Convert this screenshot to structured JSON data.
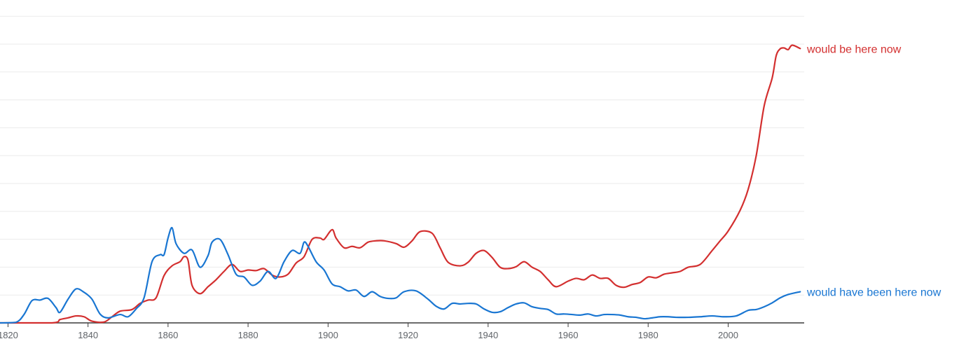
{
  "chart_data": {
    "type": "line",
    "title": "",
    "xlabel": "",
    "ylabel": "",
    "xlim": [
      1818,
      2019
    ],
    "ylim": [
      0,
      11
    ],
    "grid": true,
    "legend": "inline-right",
    "x_ticks": [
      1820,
      1840,
      1860,
      1880,
      1900,
      1920,
      1940,
      1960,
      1980,
      2000
    ],
    "series": [
      {
        "name": "would be here now",
        "color": "#d32f2f",
        "points": [
          [
            1818,
            0
          ],
          [
            1831,
            0
          ],
          [
            1833,
            0.12
          ],
          [
            1835,
            0.18
          ],
          [
            1837,
            0.25
          ],
          [
            1839,
            0.22
          ],
          [
            1841,
            0.06
          ],
          [
            1844,
            0.03
          ],
          [
            1846,
            0.22
          ],
          [
            1848,
            0.42
          ],
          [
            1851,
            0.48
          ],
          [
            1853,
            0.7
          ],
          [
            1855,
            0.82
          ],
          [
            1857,
            0.9
          ],
          [
            1859,
            1.7
          ],
          [
            1861,
            2.05
          ],
          [
            1863,
            2.2
          ],
          [
            1864,
            2.38
          ],
          [
            1865,
            2.25
          ],
          [
            1866,
            1.35
          ],
          [
            1868,
            1.05
          ],
          [
            1870,
            1.3
          ],
          [
            1872,
            1.55
          ],
          [
            1874,
            1.85
          ],
          [
            1876,
            2.1
          ],
          [
            1878,
            1.85
          ],
          [
            1880,
            1.9
          ],
          [
            1882,
            1.88
          ],
          [
            1884,
            1.95
          ],
          [
            1886,
            1.72
          ],
          [
            1888,
            1.65
          ],
          [
            1890,
            1.75
          ],
          [
            1892,
            2.15
          ],
          [
            1894,
            2.38
          ],
          [
            1896,
            3.0
          ],
          [
            1898,
            3.05
          ],
          [
            1899,
            3.0
          ],
          [
            1901,
            3.35
          ],
          [
            1902,
            3.05
          ],
          [
            1904,
            2.7
          ],
          [
            1906,
            2.75
          ],
          [
            1908,
            2.7
          ],
          [
            1910,
            2.9
          ],
          [
            1912,
            2.95
          ],
          [
            1914,
            2.95
          ],
          [
            1917,
            2.85
          ],
          [
            1919,
            2.72
          ],
          [
            1921,
            2.95
          ],
          [
            1923,
            3.28
          ],
          [
            1926,
            3.22
          ],
          [
            1928,
            2.7
          ],
          [
            1930,
            2.18
          ],
          [
            1933,
            2.05
          ],
          [
            1935,
            2.18
          ],
          [
            1937,
            2.5
          ],
          [
            1939,
            2.6
          ],
          [
            1941,
            2.35
          ],
          [
            1943,
            2.0
          ],
          [
            1945,
            1.95
          ],
          [
            1947,
            2.02
          ],
          [
            1949,
            2.2
          ],
          [
            1951,
            2.0
          ],
          [
            1953,
            1.85
          ],
          [
            1955,
            1.55
          ],
          [
            1957,
            1.3
          ],
          [
            1960,
            1.5
          ],
          [
            1962,
            1.6
          ],
          [
            1964,
            1.55
          ],
          [
            1966,
            1.72
          ],
          [
            1968,
            1.6
          ],
          [
            1970,
            1.6
          ],
          [
            1972,
            1.35
          ],
          [
            1974,
            1.28
          ],
          [
            1976,
            1.38
          ],
          [
            1978,
            1.45
          ],
          [
            1980,
            1.65
          ],
          [
            1982,
            1.62
          ],
          [
            1984,
            1.75
          ],
          [
            1986,
            1.8
          ],
          [
            1988,
            1.85
          ],
          [
            1990,
            2.0
          ],
          [
            1993,
            2.1
          ],
          [
            1996,
            2.6
          ],
          [
            1998,
            2.95
          ],
          [
            2000,
            3.3
          ],
          [
            2003,
            4.05
          ],
          [
            2005,
            4.8
          ],
          [
            2007,
            6.0
          ],
          [
            2009,
            7.8
          ],
          [
            2011,
            8.8
          ],
          [
            2012,
            9.6
          ],
          [
            2013,
            9.85
          ],
          [
            2014,
            9.88
          ],
          [
            2015,
            9.82
          ],
          [
            2016,
            9.98
          ],
          [
            2018,
            9.86
          ]
        ]
      },
      {
        "name": "would have been here now",
        "color": "#1976d2",
        "points": [
          [
            1818,
            0
          ],
          [
            1822,
            0.02
          ],
          [
            1824,
            0.3
          ],
          [
            1826,
            0.8
          ],
          [
            1828,
            0.82
          ],
          [
            1830,
            0.88
          ],
          [
            1832,
            0.55
          ],
          [
            1833,
            0.38
          ],
          [
            1835,
            0.85
          ],
          [
            1837,
            1.22
          ],
          [
            1839,
            1.1
          ],
          [
            1841,
            0.85
          ],
          [
            1843,
            0.32
          ],
          [
            1845,
            0.18
          ],
          [
            1848,
            0.3
          ],
          [
            1850,
            0.22
          ],
          [
            1852,
            0.5
          ],
          [
            1854,
            0.9
          ],
          [
            1856,
            2.2
          ],
          [
            1858,
            2.45
          ],
          [
            1859,
            2.45
          ],
          [
            1860,
            3.05
          ],
          [
            1861,
            3.42
          ],
          [
            1862,
            2.85
          ],
          [
            1864,
            2.5
          ],
          [
            1866,
            2.62
          ],
          [
            1868,
            2.0
          ],
          [
            1870,
            2.42
          ],
          [
            1871,
            2.9
          ],
          [
            1873,
            3.0
          ],
          [
            1875,
            2.45
          ],
          [
            1877,
            1.75
          ],
          [
            1879,
            1.65
          ],
          [
            1881,
            1.35
          ],
          [
            1883,
            1.5
          ],
          [
            1885,
            1.85
          ],
          [
            1887,
            1.6
          ],
          [
            1889,
            2.2
          ],
          [
            1891,
            2.6
          ],
          [
            1893,
            2.5
          ],
          [
            1894,
            2.9
          ],
          [
            1895,
            2.75
          ],
          [
            1897,
            2.2
          ],
          [
            1899,
            1.9
          ],
          [
            1901,
            1.4
          ],
          [
            1903,
            1.3
          ],
          [
            1905,
            1.15
          ],
          [
            1907,
            1.18
          ],
          [
            1909,
            0.95
          ],
          [
            1911,
            1.12
          ],
          [
            1913,
            0.95
          ],
          [
            1915,
            0.88
          ],
          [
            1917,
            0.9
          ],
          [
            1919,
            1.12
          ],
          [
            1922,
            1.15
          ],
          [
            1925,
            0.85
          ],
          [
            1927,
            0.6
          ],
          [
            1929,
            0.5
          ],
          [
            1931,
            0.7
          ],
          [
            1933,
            0.68
          ],
          [
            1935,
            0.7
          ],
          [
            1937,
            0.68
          ],
          [
            1939,
            0.5
          ],
          [
            1941,
            0.38
          ],
          [
            1943,
            0.4
          ],
          [
            1945,
            0.55
          ],
          [
            1947,
            0.68
          ],
          [
            1949,
            0.72
          ],
          [
            1951,
            0.58
          ],
          [
            1953,
            0.52
          ],
          [
            1955,
            0.48
          ],
          [
            1957,
            0.32
          ],
          [
            1959,
            0.32
          ],
          [
            1961,
            0.3
          ],
          [
            1963,
            0.28
          ],
          [
            1965,
            0.32
          ],
          [
            1967,
            0.25
          ],
          [
            1969,
            0.3
          ],
          [
            1971,
            0.3
          ],
          [
            1973,
            0.28
          ],
          [
            1975,
            0.22
          ],
          [
            1977,
            0.2
          ],
          [
            1979,
            0.15
          ],
          [
            1981,
            0.18
          ],
          [
            1983,
            0.22
          ],
          [
            1985,
            0.22
          ],
          [
            1987,
            0.2
          ],
          [
            1990,
            0.2
          ],
          [
            1993,
            0.22
          ],
          [
            1996,
            0.25
          ],
          [
            1999,
            0.22
          ],
          [
            2002,
            0.25
          ],
          [
            2005,
            0.45
          ],
          [
            2007,
            0.48
          ],
          [
            2009,
            0.58
          ],
          [
            2011,
            0.72
          ],
          [
            2013,
            0.9
          ],
          [
            2015,
            1.02
          ],
          [
            2018,
            1.12
          ]
        ]
      }
    ]
  }
}
